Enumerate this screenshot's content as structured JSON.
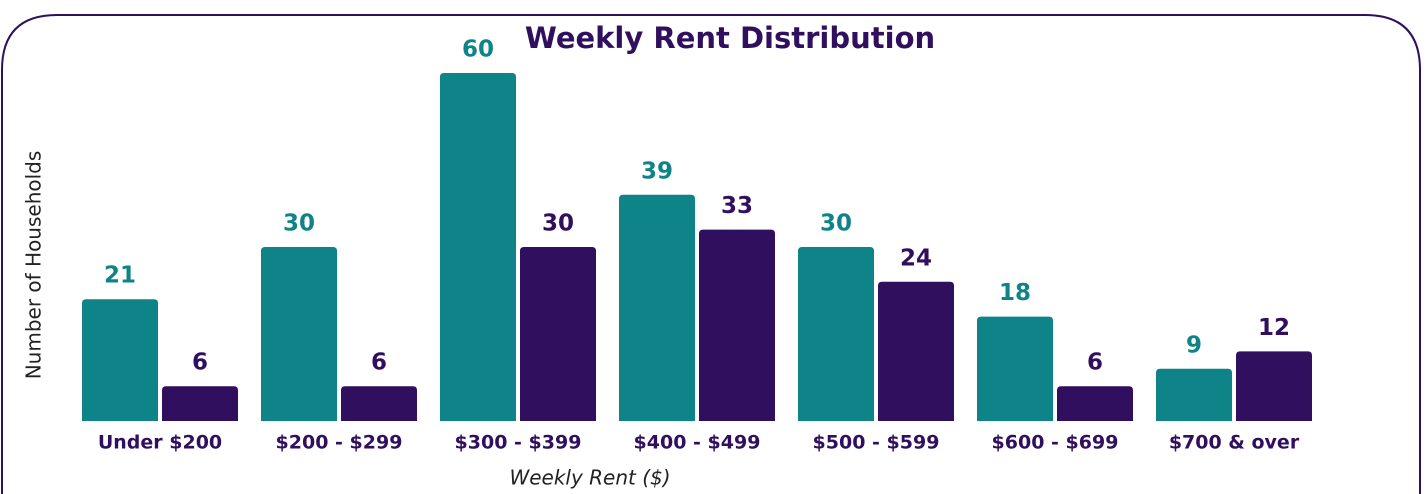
{
  "chart_data": {
    "type": "bar",
    "title": "Weekly Rent Distribution",
    "x_label": "Weekly Rent ($)",
    "y_label": "Number of Households",
    "categories": [
      "Under $200",
      "$200 - $299",
      "$300 - $399",
      "$400 - $499",
      "$500 - $599",
      "$600 - $699",
      "$700 & over"
    ],
    "series": [
      {
        "color": "#0e8488",
        "values": [
          21,
          30,
          60,
          39,
          30,
          18,
          9
        ]
      },
      {
        "color": "#2f0f5e",
        "values": [
          6,
          6,
          30,
          33,
          24,
          6,
          12
        ]
      }
    ]
  }
}
